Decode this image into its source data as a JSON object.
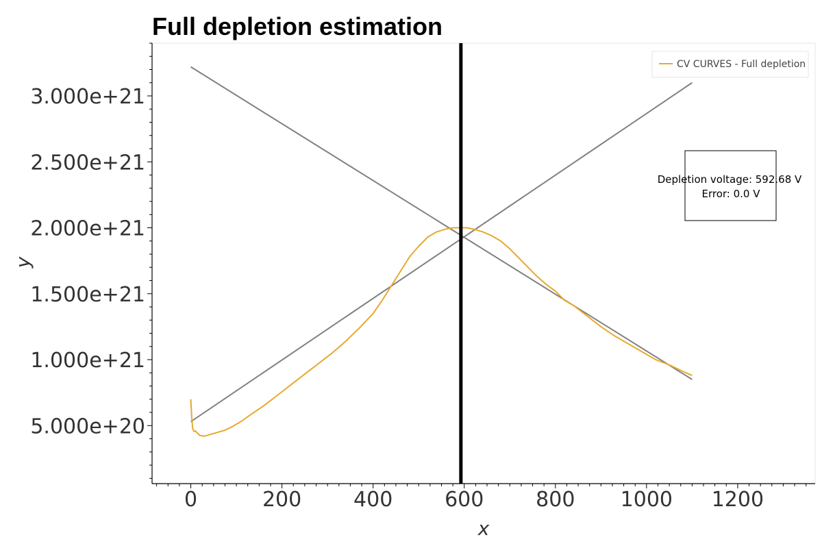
{
  "chart_data": {
    "type": "line",
    "title": "Full depletion estimation",
    "xlabel": "x",
    "ylabel": "y",
    "xlim": [
      -85,
      1370
    ],
    "ylim": [
      6e+19,
      3.4e+21
    ],
    "xticks": [
      0,
      200,
      400,
      600,
      800,
      1000,
      1200
    ],
    "xtick_labels": [
      "0",
      "200",
      "400",
      "600",
      "800",
      "1000",
      "1200"
    ],
    "yticks": [
      5e+20,
      1e+21,
      1.5e+21,
      2e+21,
      2.5e+21,
      3e+21
    ],
    "ytick_labels": [
      "5.000e+20",
      "1.000e+21",
      "1.500e+21",
      "2.000e+21",
      "2.500e+21",
      "3.000e+21"
    ],
    "grid": false,
    "legend_position": "top-right",
    "series": [
      {
        "name": "CV CURVES - Full depletion",
        "color": "#e6a92e",
        "x": [
          0,
          2,
          4,
          7,
          10,
          15,
          20,
          30,
          45,
          60,
          75,
          90,
          110,
          130,
          160,
          190,
          220,
          250,
          280,
          310,
          340,
          370,
          400,
          420,
          440,
          460,
          480,
          500,
          520,
          540,
          560,
          575,
          592,
          605,
          620,
          640,
          660,
          680,
          700,
          720,
          740,
          760,
          780,
          800,
          820,
          840,
          870,
          900,
          930,
          960,
          990,
          1020,
          1050,
          1080,
          1100
        ],
        "y": [
          7e+20,
          5.6e+20,
          4.8e+20,
          4.55e+20,
          4.6e+20,
          4.4e+20,
          4.25e+20,
          4.2e+20,
          4.35e+20,
          4.5e+20,
          4.65e+20,
          4.9e+20,
          5.3e+20,
          5.8e+20,
          6.5e+20,
          7.3e+20,
          8.1e+20,
          8.9e+20,
          9.7e+20,
          1.05e+21,
          1.14e+21,
          1.24e+21,
          1.35e+21,
          1.45e+21,
          1.56e+21,
          1.67e+21,
          1.78e+21,
          1.86e+21,
          1.93e+21,
          1.97e+21,
          1.99e+21,
          2e+21,
          2e+21,
          2e+21,
          1.99e+21,
          1.97e+21,
          1.94e+21,
          1.9e+21,
          1.84e+21,
          1.77e+21,
          1.7e+21,
          1.63e+21,
          1.57e+21,
          1.52e+21,
          1.45e+21,
          1.41e+21,
          1.33e+21,
          1.25e+21,
          1.18e+21,
          1.12e+21,
          1.06e+21,
          1e+21,
          9.6e+20,
          9.1e+20,
          8.8e+20
        ]
      }
    ],
    "fit_lines": [
      {
        "color": "#808080",
        "x": [
          0,
          1100
        ],
        "y": [
          5.3e+20,
          3.1e+21
        ]
      },
      {
        "color": "#808080",
        "x": [
          0,
          1100
        ],
        "y": [
          3.22e+21,
          8.5e+20
        ]
      }
    ],
    "vline": {
      "x": 592.68,
      "color": "#000000"
    },
    "annotation": {
      "line1": "Depletion voltage: 592.68 V",
      "line2": "Error: 0.0 V"
    }
  }
}
